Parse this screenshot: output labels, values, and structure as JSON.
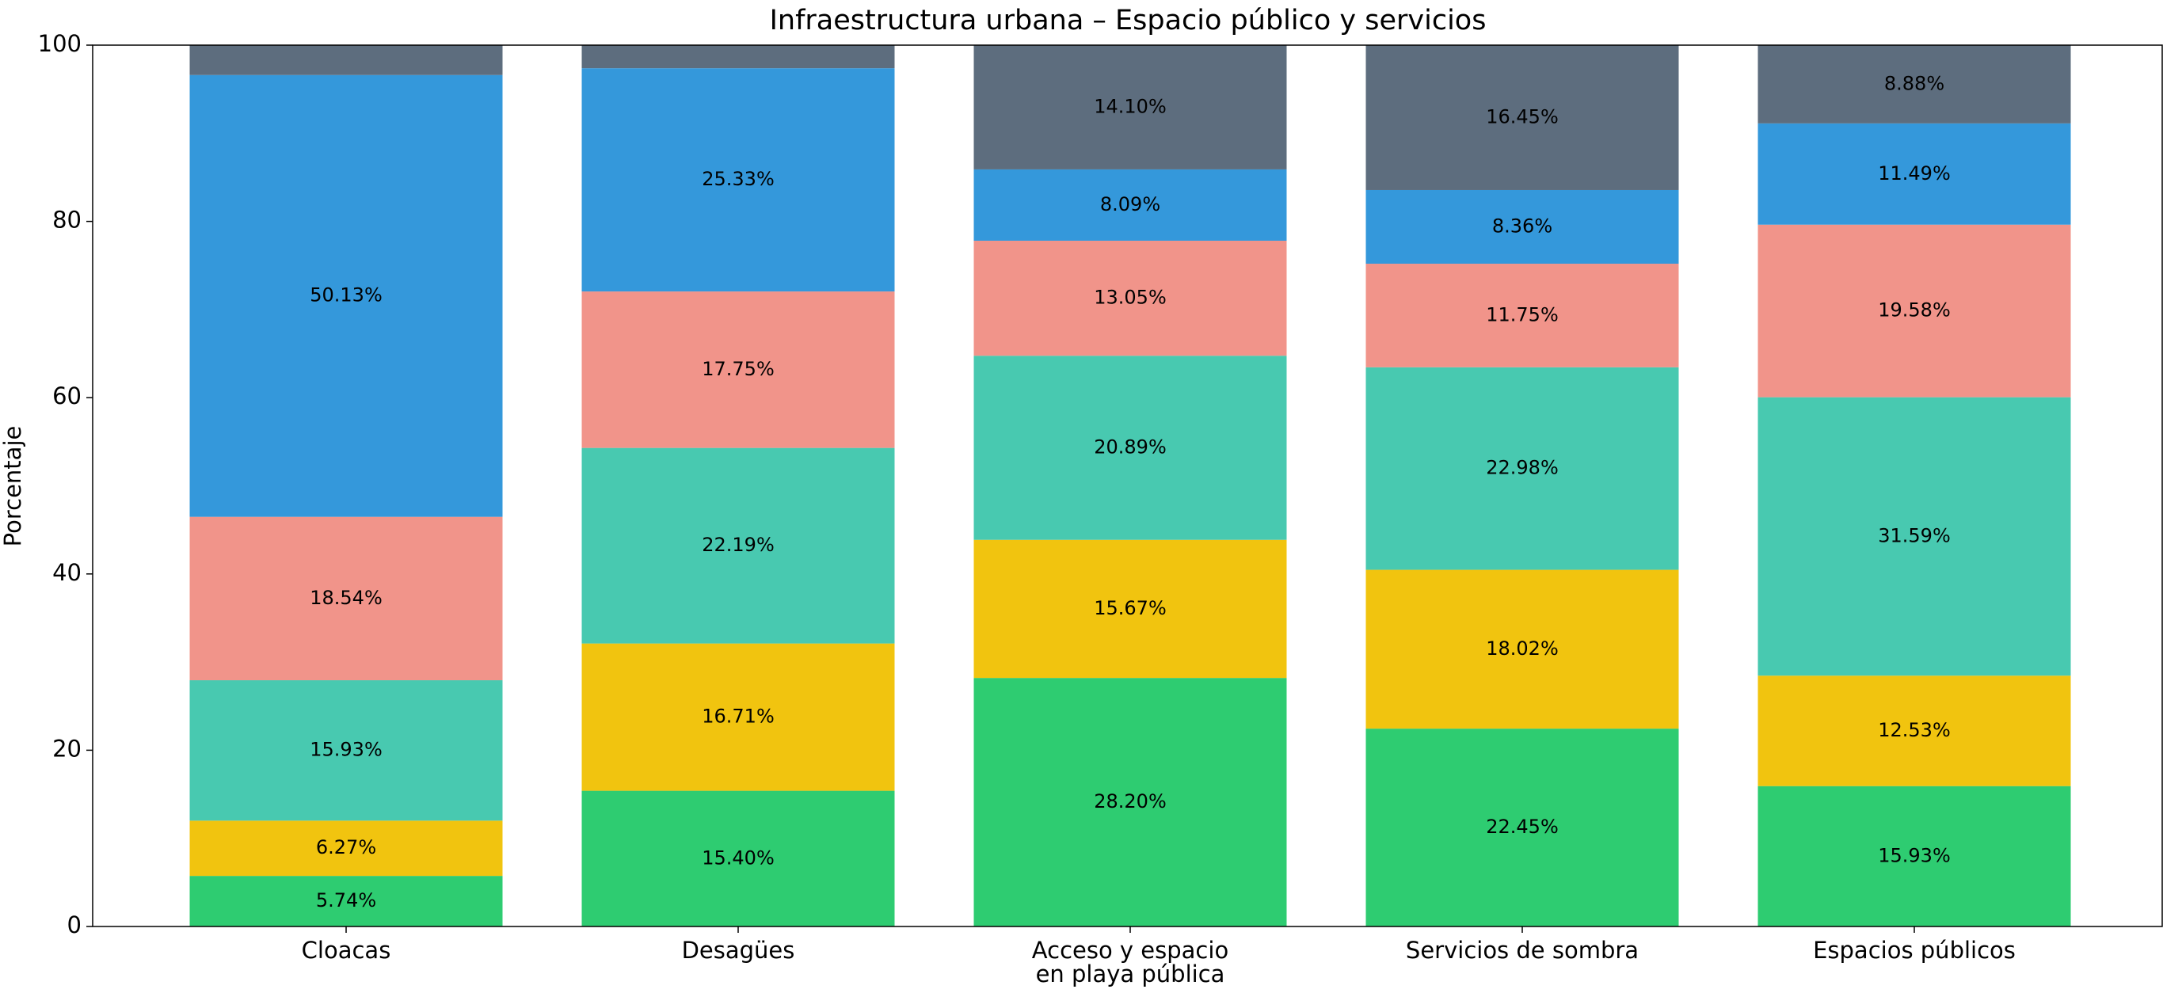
{
  "chart_data": {
    "type": "stacked_bar",
    "title": "Infraestructura urbana – Espacio público y servicios",
    "ylabel": "Porcentaje",
    "categories": [
      "Cloacas",
      "Desagües",
      "Acceso y espacio\nen playa pública",
      "Servicios de sombra",
      "Espacios públicos"
    ],
    "ylim": [
      0,
      100
    ],
    "yticks": [
      0,
      20,
      40,
      60,
      80,
      100
    ],
    "series": [
      {
        "color": "#2ecc71",
        "values": [
          5.74,
          15.4,
          28.2,
          22.45,
          15.93
        ],
        "value_labels": [
          "5.74%",
          "15.40%",
          "28.20%",
          "22.45%",
          "15.93%"
        ]
      },
      {
        "color": "#f1c40f",
        "values": [
          6.27,
          16.71,
          15.67,
          18.02,
          12.53
        ],
        "value_labels": [
          "6.27%",
          "16.71%",
          "15.67%",
          "18.02%",
          "12.53%"
        ]
      },
      {
        "color": "#48c9b0",
        "values": [
          15.93,
          22.19,
          20.89,
          22.98,
          31.59
        ],
        "value_labels": [
          "15.93%",
          "22.19%",
          "20.89%",
          "22.98%",
          "31.59%"
        ]
      },
      {
        "color": "#f1948a",
        "values": [
          18.54,
          17.75,
          13.05,
          11.75,
          19.58
        ],
        "value_labels": [
          "18.54%",
          "17.75%",
          "13.05%",
          "11.75%",
          "19.58%"
        ]
      },
      {
        "color": "#3498db",
        "values": [
          50.13,
          25.33,
          8.09,
          8.36,
          11.49
        ],
        "value_labels": [
          "50.13%",
          "25.33%",
          "8.09%",
          "8.36%",
          "11.49%"
        ]
      },
      {
        "color": "#5d6d7e",
        "values": [
          3.39,
          2.62,
          14.1,
          16.45,
          8.88
        ],
        "value_labels": [
          null,
          null,
          "14.10%",
          "16.45%",
          "8.88%"
        ]
      }
    ]
  }
}
